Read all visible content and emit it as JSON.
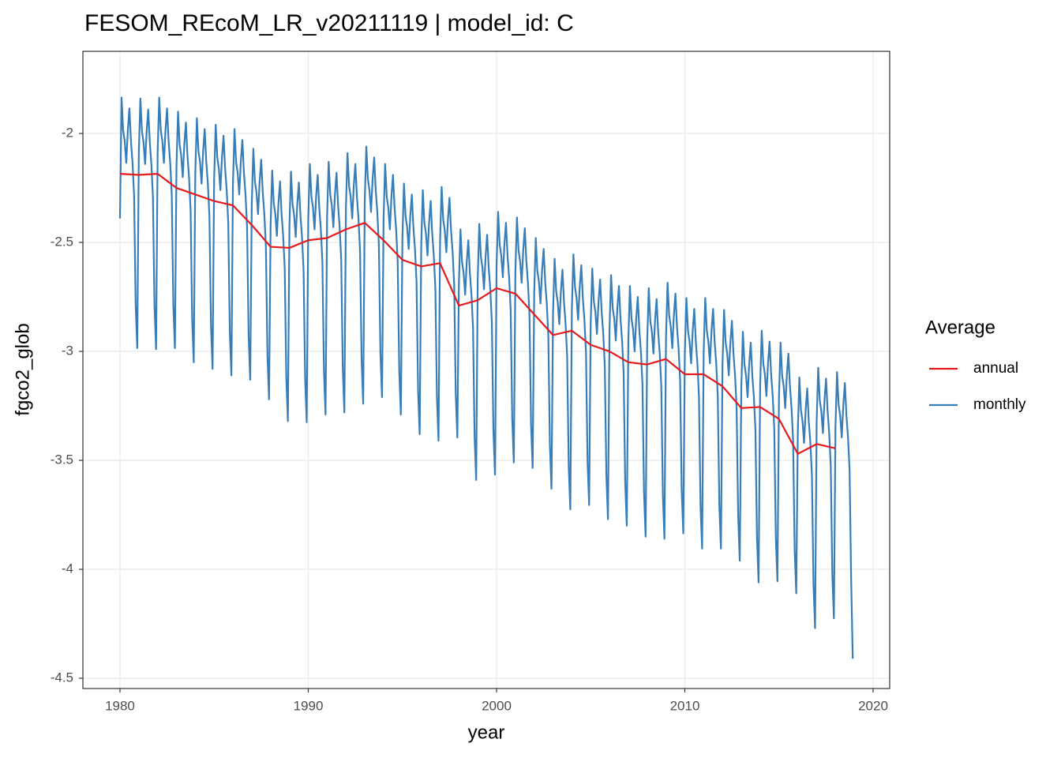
{
  "chart_data": {
    "type": "line",
    "title": "FESOM_REcoM_LR_v20211119 | model_id: C",
    "x_label": "year",
    "y_label": "fgco2_glob",
    "legend_title": "Average",
    "legend_position": "right",
    "grid": true,
    "xlim": [
      1978.03,
      2020.88
    ],
    "xticks": [
      1980,
      1990,
      2000,
      2010,
      2020
    ],
    "ylim": [
      -4.547,
      -1.623
    ],
    "yticks": [
      -4.5,
      -4.0,
      -3.5,
      -3.0,
      -2.5,
      -2.0
    ],
    "series": [
      {
        "name": "annual",
        "color": "#e41a1c",
        "x": [
          1980,
          1981,
          1982,
          1983,
          1984,
          1985,
          1986,
          1987,
          1988,
          1989,
          1990,
          1991,
          1992,
          1993,
          1994,
          1995,
          1996,
          1997,
          1998,
          1999,
          2000,
          2001,
          2002,
          2003,
          2004,
          2005,
          2006,
          2007,
          2008,
          2009,
          2010,
          2011,
          2012,
          2013,
          2014,
          2015,
          2016,
          2017,
          2018
        ],
        "values": [
          -2.185,
          -2.19,
          -2.185,
          -2.25,
          -2.28,
          -2.31,
          -2.33,
          -2.42,
          -2.52,
          -2.525,
          -2.49,
          -2.48,
          -2.44,
          -2.41,
          -2.49,
          -2.58,
          -2.61,
          -2.595,
          -2.79,
          -2.765,
          -2.71,
          -2.735,
          -2.83,
          -2.925,
          -2.905,
          -2.97,
          -3.0,
          -3.05,
          -3.06,
          -3.035,
          -3.105,
          -3.105,
          -3.16,
          -3.26,
          -3.255,
          -3.31,
          -3.47,
          -3.425,
          -3.445
        ]
      },
      {
        "name": "monthly",
        "color": "#377eb8",
        "x": [
          1980,
          1980.083,
          1980.167,
          1980.25,
          1980.333,
          1980.417,
          1980.5,
          1980.583,
          1980.667,
          1980.75,
          1980.833,
          1980.917,
          1981,
          1981.083,
          1981.167,
          1981.25,
          1981.333,
          1981.417,
          1981.5,
          1981.583,
          1981.667,
          1981.75,
          1981.833,
          1981.917,
          1982,
          1982.083,
          1982.167,
          1982.25,
          1982.333,
          1982.417,
          1982.5,
          1982.583,
          1982.667,
          1982.75,
          1982.833,
          1982.917,
          1983,
          1983.083,
          1983.167,
          1983.25,
          1983.333,
          1983.417,
          1983.5,
          1983.583,
          1983.667,
          1983.75,
          1983.833,
          1983.917,
          1984,
          1984.083,
          1984.167,
          1984.25,
          1984.333,
          1984.417,
          1984.5,
          1984.583,
          1984.667,
          1984.75,
          1984.833,
          1984.917,
          1985,
          1985.083,
          1985.167,
          1985.25,
          1985.333,
          1985.417,
          1985.5,
          1985.583,
          1985.667,
          1985.75,
          1985.833,
          1985.917,
          1986,
          1986.083,
          1986.167,
          1986.25,
          1986.333,
          1986.417,
          1986.5,
          1986.583,
          1986.667,
          1986.75,
          1986.833,
          1986.917,
          1987,
          1987.083,
          1987.167,
          1987.25,
          1987.333,
          1987.417,
          1987.5,
          1987.583,
          1987.667,
          1987.75,
          1987.833,
          1987.917,
          1988,
          1988.083,
          1988.167,
          1988.25,
          1988.333,
          1988.417,
          1988.5,
          1988.583,
          1988.667,
          1988.75,
          1988.833,
          1988.917,
          1989,
          1989.083,
          1989.167,
          1989.25,
          1989.333,
          1989.417,
          1989.5,
          1989.583,
          1989.667,
          1989.75,
          1989.833,
          1989.917,
          1990,
          1990.083,
          1990.167,
          1990.25,
          1990.333,
          1990.417,
          1990.5,
          1990.583,
          1990.667,
          1990.75,
          1990.833,
          1990.917,
          1991,
          1991.083,
          1991.167,
          1991.25,
          1991.333,
          1991.417,
          1991.5,
          1991.583,
          1991.667,
          1991.75,
          1991.833,
          1991.917,
          1992,
          1992.083,
          1992.167,
          1992.25,
          1992.333,
          1992.417,
          1992.5,
          1992.583,
          1992.667,
          1992.75,
          1992.833,
          1992.917,
          1993,
          1993.083,
          1993.167,
          1993.25,
          1993.333,
          1993.417,
          1993.5,
          1993.583,
          1993.667,
          1993.75,
          1993.833,
          1993.917,
          1994,
          1994.083,
          1994.167,
          1994.25,
          1994.333,
          1994.417,
          1994.5,
          1994.583,
          1994.667,
          1994.75,
          1994.833,
          1994.917,
          1995,
          1995.083,
          1995.167,
          1995.25,
          1995.333,
          1995.417,
          1995.5,
          1995.583,
          1995.667,
          1995.75,
          1995.833,
          1995.917,
          1996,
          1996.083,
          1996.167,
          1996.25,
          1996.333,
          1996.417,
          1996.5,
          1996.583,
          1996.667,
          1996.75,
          1996.833,
          1996.917,
          1997,
          1997.083,
          1997.167,
          1997.25,
          1997.333,
          1997.417,
          1997.5,
          1997.583,
          1997.667,
          1997.75,
          1997.833,
          1997.917,
          1998,
          1998.083,
          1998.167,
          1998.25,
          1998.333,
          1998.417,
          1998.5,
          1998.583,
          1998.667,
          1998.75,
          1998.833,
          1998.917,
          1999,
          1999.083,
          1999.167,
          1999.25,
          1999.333,
          1999.417,
          1999.5,
          1999.583,
          1999.667,
          1999.75,
          1999.833,
          1999.917,
          2000,
          2000.083,
          2000.167,
          2000.25,
          2000.333,
          2000.417,
          2000.5,
          2000.583,
          2000.667,
          2000.75,
          2000.833,
          2000.917,
          2001,
          2001.083,
          2001.167,
          2001.25,
          2001.333,
          2001.417,
          2001.5,
          2001.583,
          2001.667,
          2001.75,
          2001.833,
          2001.917,
          2002,
          2002.083,
          2002.167,
          2002.25,
          2002.333,
          2002.417,
          2002.5,
          2002.583,
          2002.667,
          2002.75,
          2002.833,
          2002.917,
          2003,
          2003.083,
          2003.167,
          2003.25,
          2003.333,
          2003.417,
          2003.5,
          2003.583,
          2003.667,
          2003.75,
          2003.833,
          2003.917,
          2004,
          2004.083,
          2004.167,
          2004.25,
          2004.333,
          2004.417,
          2004.5,
          2004.583,
          2004.667,
          2004.75,
          2004.833,
          2004.917,
          2005,
          2005.083,
          2005.167,
          2005.25,
          2005.333,
          2005.417,
          2005.5,
          2005.583,
          2005.667,
          2005.75,
          2005.833,
          2005.917,
          2006,
          2006.083,
          2006.167,
          2006.25,
          2006.333,
          2006.417,
          2006.5,
          2006.583,
          2006.667,
          2006.75,
          2006.833,
          2006.917,
          2007,
          2007.083,
          2007.167,
          2007.25,
          2007.333,
          2007.417,
          2007.5,
          2007.583,
          2007.667,
          2007.75,
          2007.833,
          2007.917,
          2008,
          2008.083,
          2008.167,
          2008.25,
          2008.333,
          2008.417,
          2008.5,
          2008.583,
          2008.667,
          2008.75,
          2008.833,
          2008.917,
          2009,
          2009.083,
          2009.167,
          2009.25,
          2009.333,
          2009.417,
          2009.5,
          2009.583,
          2009.667,
          2009.75,
          2009.833,
          2009.917,
          2010,
          2010.083,
          2010.167,
          2010.25,
          2010.333,
          2010.417,
          2010.5,
          2010.583,
          2010.667,
          2010.75,
          2010.833,
          2010.917,
          2011,
          2011.083,
          2011.167,
          2011.25,
          2011.333,
          2011.417,
          2011.5,
          2011.583,
          2011.667,
          2011.75,
          2011.833,
          2011.917,
          2012,
          2012.083,
          2012.167,
          2012.25,
          2012.333,
          2012.417,
          2012.5,
          2012.583,
          2012.667,
          2012.75,
          2012.833,
          2012.917,
          2013,
          2013.083,
          2013.167,
          2013.25,
          2013.333,
          2013.417,
          2013.5,
          2013.583,
          2013.667,
          2013.75,
          2013.833,
          2013.917,
          2014,
          2014.083,
          2014.167,
          2014.25,
          2014.333,
          2014.417,
          2014.5,
          2014.583,
          2014.667,
          2014.75,
          2014.833,
          2014.917,
          2015,
          2015.083,
          2015.167,
          2015.25,
          2015.333,
          2015.417,
          2015.5,
          2015.583,
          2015.667,
          2015.75,
          2015.833,
          2015.917,
          2016,
          2016.083,
          2016.167,
          2016.25,
          2016.333,
          2016.417,
          2016.5,
          2016.583,
          2016.667,
          2016.75,
          2016.833,
          2016.917,
          2017,
          2017.083,
          2017.167,
          2017.25,
          2017.333,
          2017.417,
          2017.5,
          2017.583,
          2017.667,
          2017.75,
          2017.833,
          2017.917,
          2018,
          2018.083,
          2018.167,
          2018.25,
          2018.333,
          2018.417,
          2018.5,
          2018.583,
          2018.667,
          2018.75,
          2018.833,
          2018.917
        ],
        "values": [
          -2.39,
          -1.835,
          -1.985,
          -2.035,
          -2.135,
          -1.985,
          -1.885,
          -2.035,
          -2.135,
          -2.285,
          -2.785,
          -2.985,
          -2.09,
          -1.84,
          -1.99,
          -2.04,
          -2.14,
          -1.99,
          -1.89,
          -2.04,
          -2.14,
          -2.29,
          -2.79,
          -2.99,
          -2.085,
          -1.835,
          -1.985,
          -2.035,
          -2.135,
          -1.985,
          -1.885,
          -2.035,
          -2.135,
          -2.285,
          -2.785,
          -2.985,
          -2.15,
          -1.9,
          -2.05,
          -2.1,
          -2.2,
          -2.05,
          -1.95,
          -2.1,
          -2.2,
          -2.35,
          -2.85,
          -3.05,
          -2.18,
          -1.93,
          -2.08,
          -2.13,
          -2.23,
          -2.08,
          -1.98,
          -2.13,
          -2.23,
          -2.38,
          -2.88,
          -3.08,
          -2.21,
          -1.96,
          -2.11,
          -2.16,
          -2.26,
          -2.11,
          -2.01,
          -2.16,
          -2.26,
          -2.41,
          -2.91,
          -3.11,
          -2.23,
          -1.98,
          -2.13,
          -2.18,
          -2.28,
          -2.13,
          -2.03,
          -2.18,
          -2.28,
          -2.43,
          -2.93,
          -3.13,
          -2.32,
          -2.07,
          -2.22,
          -2.27,
          -2.37,
          -2.22,
          -2.12,
          -2.27,
          -2.37,
          -2.52,
          -3.02,
          -3.22,
          -2.42,
          -2.17,
          -2.32,
          -2.37,
          -2.47,
          -2.32,
          -2.22,
          -2.37,
          -2.47,
          -2.62,
          -3.12,
          -3.32,
          -2.425,
          -2.175,
          -2.325,
          -2.375,
          -2.475,
          -2.325,
          -2.225,
          -2.375,
          -2.475,
          -2.625,
          -3.125,
          -3.325,
          -2.39,
          -2.14,
          -2.29,
          -2.34,
          -2.44,
          -2.29,
          -2.19,
          -2.34,
          -2.44,
          -2.59,
          -3.09,
          -3.29,
          -2.38,
          -2.13,
          -2.28,
          -2.33,
          -2.43,
          -2.28,
          -2.18,
          -2.33,
          -2.43,
          -2.58,
          -3.08,
          -3.28,
          -2.34,
          -2.09,
          -2.24,
          -2.29,
          -2.39,
          -2.24,
          -2.14,
          -2.29,
          -2.39,
          -2.54,
          -3.04,
          -3.24,
          -2.31,
          -2.06,
          -2.21,
          -2.26,
          -2.36,
          -2.21,
          -2.11,
          -2.26,
          -2.36,
          -2.51,
          -3.01,
          -3.21,
          -2.39,
          -2.14,
          -2.29,
          -2.34,
          -2.44,
          -2.29,
          -2.19,
          -2.34,
          -2.44,
          -2.59,
          -3.09,
          -3.29,
          -2.48,
          -2.23,
          -2.38,
          -2.43,
          -2.53,
          -2.38,
          -2.28,
          -2.43,
          -2.53,
          -2.68,
          -3.18,
          -3.38,
          -2.51,
          -2.26,
          -2.41,
          -2.46,
          -2.56,
          -2.41,
          -2.31,
          -2.46,
          -2.56,
          -2.71,
          -3.21,
          -3.41,
          -2.495,
          -2.245,
          -2.395,
          -2.445,
          -2.545,
          -2.395,
          -2.295,
          -2.445,
          -2.545,
          -2.695,
          -3.195,
          -3.395,
          -2.69,
          -2.44,
          -2.59,
          -2.64,
          -2.74,
          -2.59,
          -2.49,
          -2.64,
          -2.74,
          -2.89,
          -3.39,
          -3.59,
          -2.665,
          -2.415,
          -2.565,
          -2.615,
          -2.715,
          -2.565,
          -2.465,
          -2.615,
          -2.715,
          -2.865,
          -3.365,
          -3.565,
          -2.61,
          -2.36,
          -2.51,
          -2.56,
          -2.66,
          -2.51,
          -2.41,
          -2.56,
          -2.66,
          -2.81,
          -3.31,
          -3.51,
          -2.635,
          -2.385,
          -2.535,
          -2.585,
          -2.685,
          -2.535,
          -2.435,
          -2.585,
          -2.685,
          -2.835,
          -3.335,
          -3.535,
          -2.73,
          -2.48,
          -2.63,
          -2.68,
          -2.78,
          -2.63,
          -2.53,
          -2.68,
          -2.78,
          -2.93,
          -3.43,
          -3.63,
          -2.825,
          -2.575,
          -2.725,
          -2.775,
          -2.875,
          -2.725,
          -2.625,
          -2.775,
          -2.875,
          -3.025,
          -3.525,
          -3.725,
          -2.805,
          -2.555,
          -2.705,
          -2.755,
          -2.855,
          -2.705,
          -2.605,
          -2.755,
          -2.855,
          -3.005,
          -3.505,
          -3.705,
          -2.87,
          -2.62,
          -2.77,
          -2.82,
          -2.92,
          -2.77,
          -2.67,
          -2.82,
          -2.92,
          -3.07,
          -3.57,
          -3.77,
          -2.9,
          -2.65,
          -2.8,
          -2.85,
          -2.95,
          -2.8,
          -2.7,
          -2.85,
          -2.95,
          -3.1,
          -3.6,
          -3.8,
          -2.95,
          -2.7,
          -2.85,
          -2.9,
          -3.0,
          -2.85,
          -2.75,
          -2.9,
          -3.0,
          -3.15,
          -3.65,
          -3.85,
          -2.96,
          -2.71,
          -2.86,
          -2.91,
          -3.01,
          -2.86,
          -2.76,
          -2.91,
          -3.01,
          -3.16,
          -3.66,
          -3.86,
          -2.935,
          -2.685,
          -2.835,
          -2.885,
          -2.985,
          -2.835,
          -2.735,
          -2.885,
          -2.985,
          -3.135,
          -3.635,
          -3.835,
          -3.005,
          -2.755,
          -2.905,
          -2.955,
          -3.055,
          -2.905,
          -2.805,
          -2.955,
          -3.055,
          -3.205,
          -3.705,
          -3.905,
          -3.005,
          -2.755,
          -2.905,
          -2.955,
          -3.055,
          -2.905,
          -2.805,
          -2.955,
          -3.055,
          -3.205,
          -3.705,
          -3.905,
          -3.06,
          -2.81,
          -2.96,
          -3.01,
          -3.11,
          -2.96,
          -2.86,
          -3.01,
          -3.11,
          -3.26,
          -3.76,
          -3.96,
          -3.16,
          -2.91,
          -3.06,
          -3.11,
          -3.21,
          -3.06,
          -2.96,
          -3.11,
          -3.21,
          -3.36,
          -3.86,
          -4.06,
          -3.155,
          -2.905,
          -3.055,
          -3.105,
          -3.205,
          -3.055,
          -2.955,
          -3.105,
          -3.205,
          -3.355,
          -3.855,
          -4.055,
          -3.21,
          -2.96,
          -3.11,
          -3.16,
          -3.26,
          -3.11,
          -3.01,
          -3.16,
          -3.26,
          -3.41,
          -3.91,
          -4.11,
          -3.37,
          -3.12,
          -3.27,
          -3.32,
          -3.42,
          -3.27,
          -3.17,
          -3.32,
          -3.42,
          -3.57,
          -4.07,
          -4.27,
          -3.325,
          -3.075,
          -3.225,
          -3.275,
          -3.375,
          -3.225,
          -3.125,
          -3.275,
          -3.375,
          -3.525,
          -4.025,
          -4.225,
          -3.345,
          -3.095,
          -3.245,
          -3.295,
          -3.395,
          -3.245,
          -3.145,
          -3.295,
          -3.395,
          -3.545,
          -4.045,
          -4.41
        ]
      }
    ]
  }
}
